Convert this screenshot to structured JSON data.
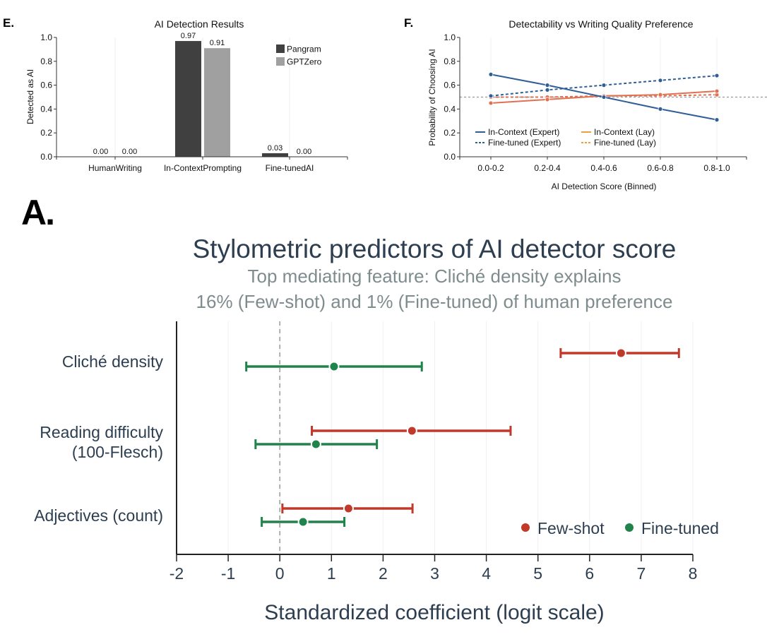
{
  "chart_data": [
    {
      "panel": "E.",
      "type": "bar",
      "title": "AI Detection Results",
      "xlabel": "",
      "ylabel": "Detected as AI",
      "ylim": [
        0,
        1.0
      ],
      "yticks": [
        "0.0",
        "0.2",
        "0.4",
        "0.6",
        "0.8",
        "1.0"
      ],
      "categories": [
        "HumanWriting",
        "In-ContextPrompting",
        "Fine-tunedAI"
      ],
      "series": [
        {
          "name": "Pangram",
          "color": "#404040",
          "values": [
            0.0,
            0.97,
            0.03
          ],
          "labels": [
            "0.00",
            "0.97",
            "0.03"
          ]
        },
        {
          "name": "GPTZero",
          "color": "#a0a0a0",
          "values": [
            0.0,
            0.91,
            0.0
          ],
          "labels": [
            "0.00",
            "0.91",
            "0.00"
          ]
        }
      ],
      "legend": "top-right",
      "grid": "vertical"
    },
    {
      "panel": "F.",
      "type": "line",
      "title": "Detectability vs Writing Quality Preference",
      "xlabel": "AI Detection Score (Binned)",
      "ylabel": "Probability of Choosing AI",
      "ylim": [
        0,
        1.0
      ],
      "yticks": [
        "0.0",
        "0.2",
        "0.4",
        "0.6",
        "0.8",
        "1.0"
      ],
      "categories": [
        "0.0-0.2",
        "0.2-0.4",
        "0.4-0.6",
        "0.6-0.8",
        "0.8-1.0"
      ],
      "reference_line": 0.5,
      "series": [
        {
          "name": "In-Context (Expert)",
          "color": "#2f5f96",
          "style": "solid",
          "values": [
            0.69,
            0.6,
            0.5,
            0.4,
            0.31
          ]
        },
        {
          "name": "Fine-tuned (Expert)",
          "color": "#2f5f96",
          "style": "dashed",
          "values": [
            0.51,
            0.56,
            0.6,
            0.64,
            0.68
          ]
        },
        {
          "name": "In-Context (Lay)",
          "color": "#e07050",
          "style": "solid",
          "values": [
            0.45,
            0.48,
            0.51,
            0.52,
            0.55
          ]
        },
        {
          "name": "Fine-tuned (Lay)",
          "color": "#e07050",
          "style": "dashed",
          "values": [
            0.5,
            0.5,
            0.51,
            0.51,
            0.52
          ]
        }
      ],
      "legend": "bottom-left",
      "legend_swatch_colors": {
        "expert": "#2f5f96",
        "lay": "#e8a040"
      }
    },
    {
      "panel": "A.",
      "type": "scatter",
      "title": "Stylometric predictors of AI detector score",
      "subtitle": [
        "Top mediating feature: Cliché density explains",
        "16% (Few-shot) and 1% (Fine-tuned) of human preference"
      ],
      "xlabel": "Standardized coefficient (logit scale)",
      "ylabel": "",
      "xlim": [
        -2,
        8
      ],
      "xticks": [
        "-2",
        "-1",
        "0",
        "1",
        "2",
        "3",
        "4",
        "5",
        "6",
        "7",
        "8"
      ],
      "reference_line": 0,
      "categories": [
        [
          "Cliché density"
        ],
        [
          "Reading difficulty",
          "(100-Flesch)"
        ],
        [
          "Adjectives (count)"
        ]
      ],
      "series": [
        {
          "name": "Few-shot",
          "color": "#c0392b",
          "estimate": [
            6.61,
            2.56,
            1.33
          ],
          "ci_low": [
            5.44,
            0.62,
            0.05
          ],
          "ci_high": [
            7.73,
            4.47,
            2.57
          ]
        },
        {
          "name": "Fine-tuned",
          "color": "#1e8449",
          "estimate": [
            1.05,
            0.7,
            0.45
          ],
          "ci_low": [
            -0.65,
            -0.47,
            -0.35
          ],
          "ci_high": [
            2.75,
            1.88,
            1.25
          ]
        }
      ],
      "legend": "bottom-right",
      "grid": "vertical"
    }
  ]
}
